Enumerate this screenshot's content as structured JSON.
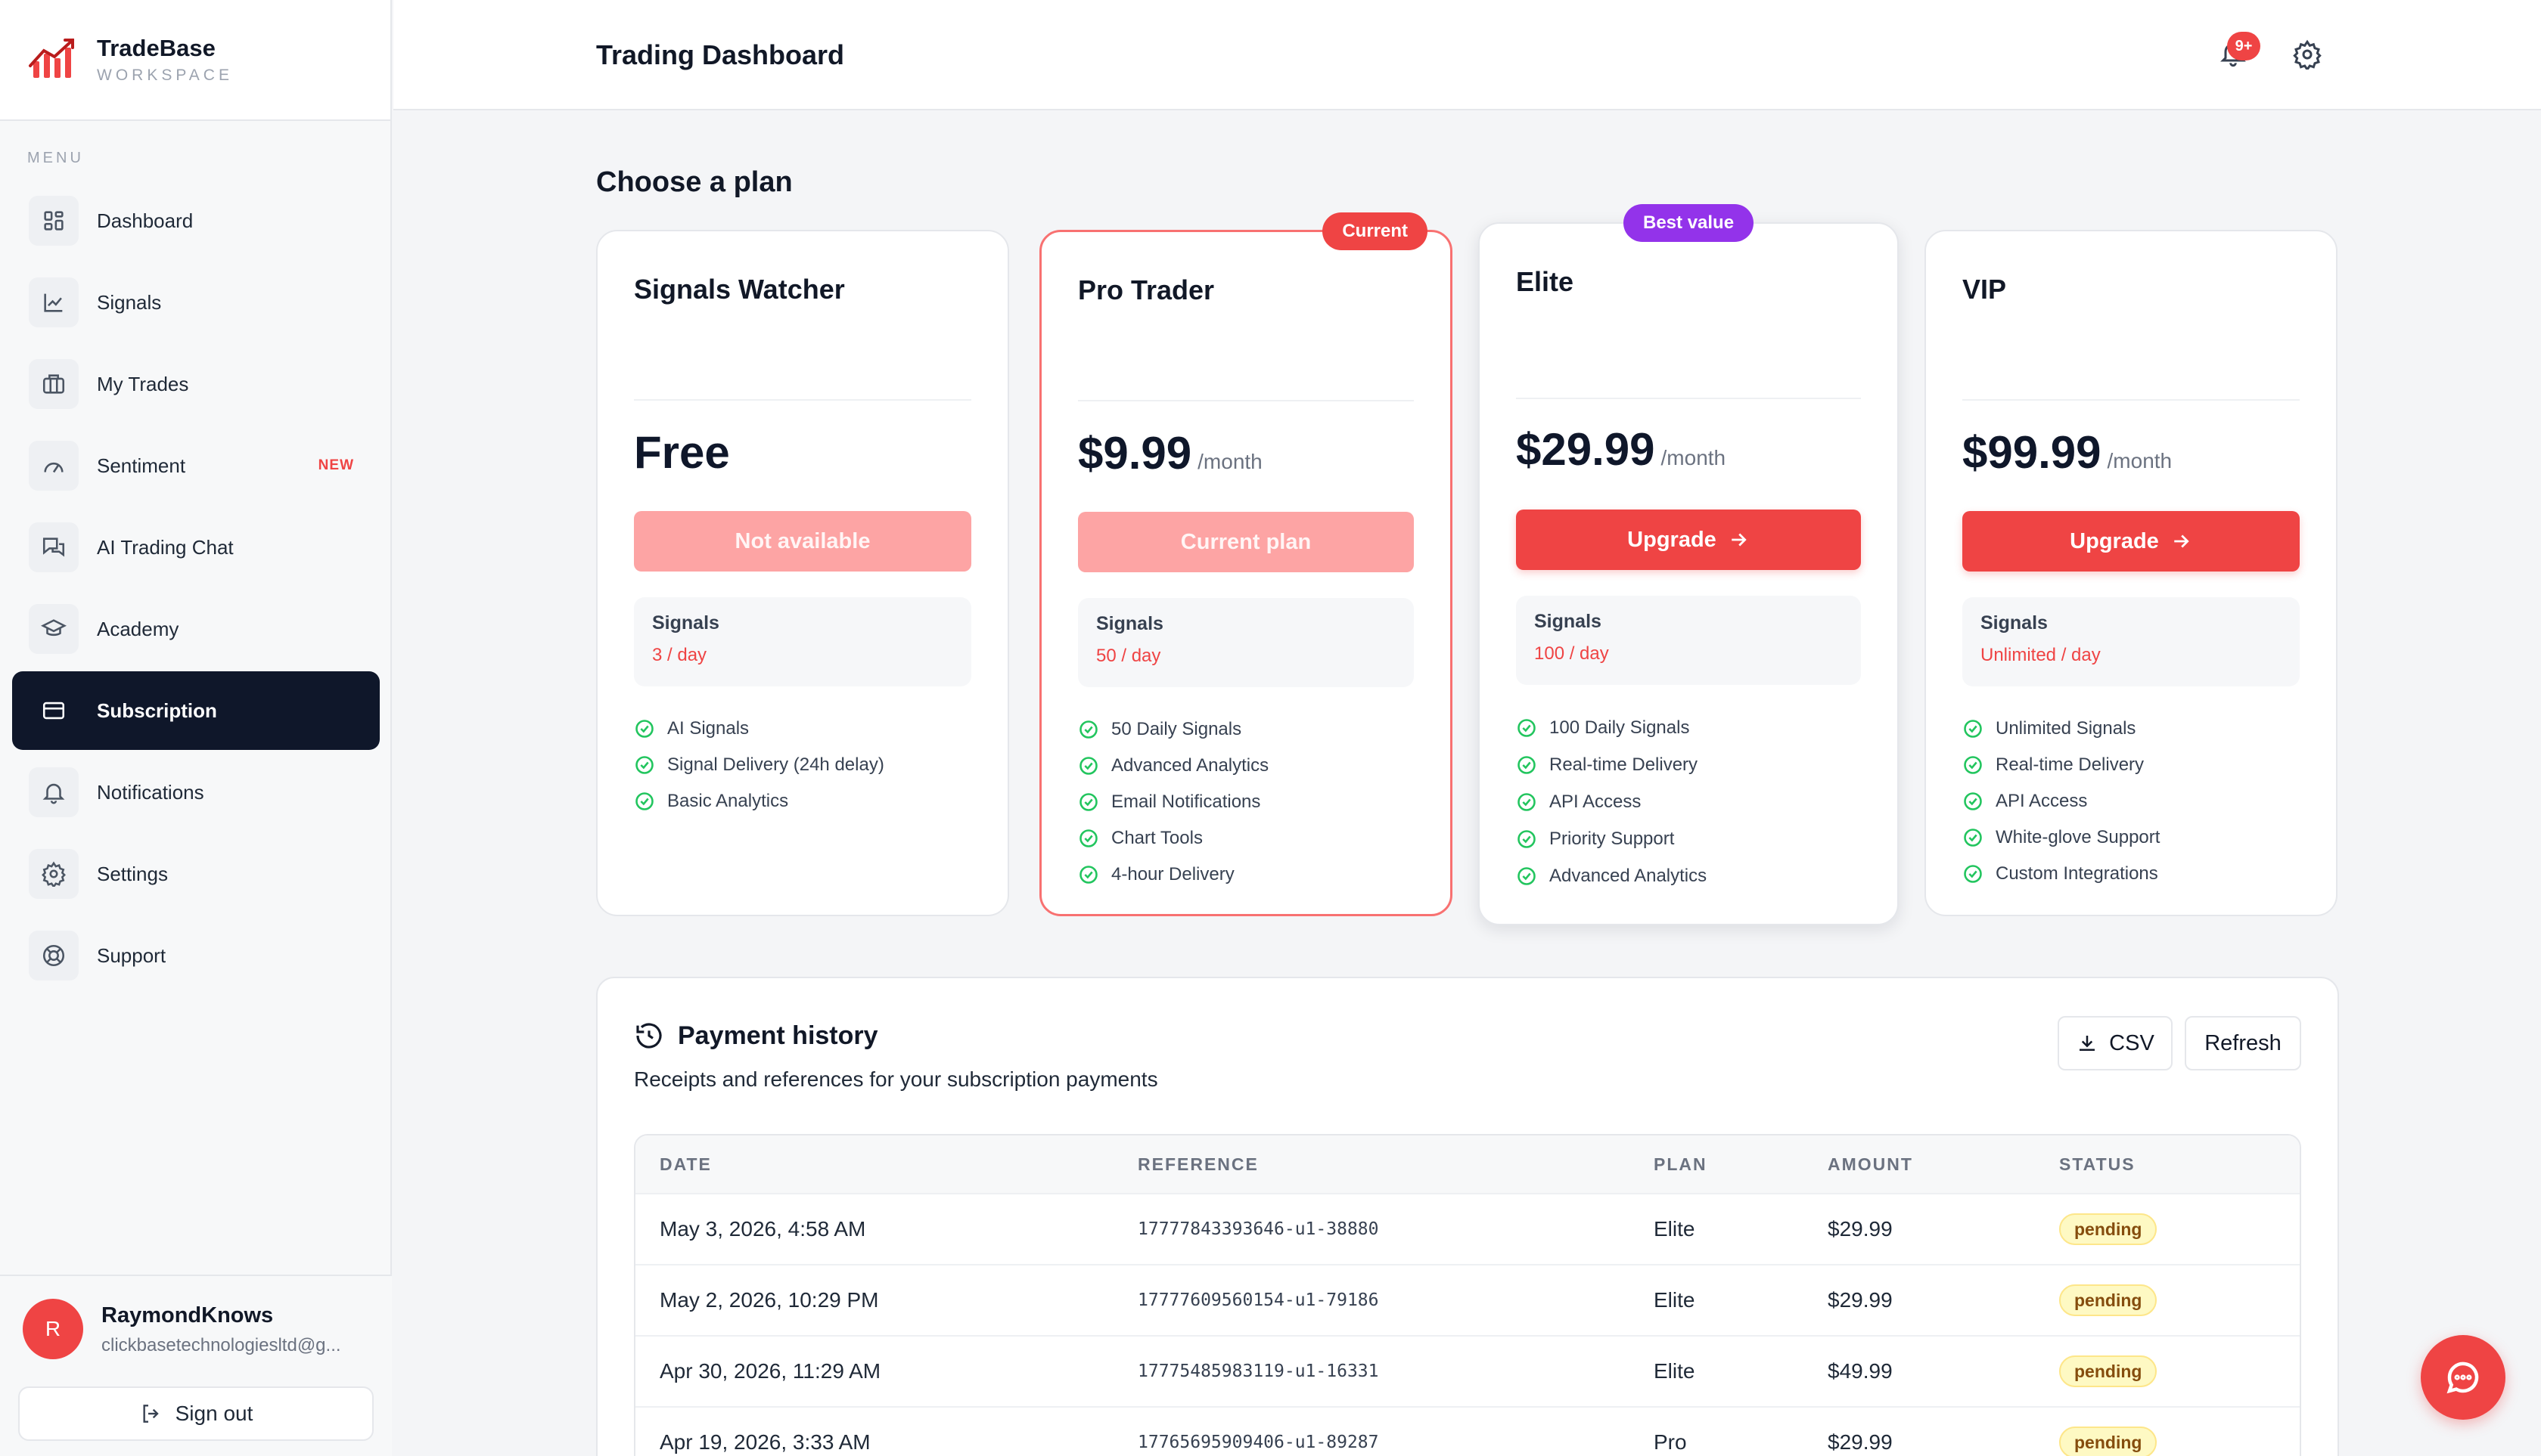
{
  "brand": {
    "name": "TradeBase",
    "sub": "WORKSPACE"
  },
  "sidebar": {
    "menu_label": "MENU",
    "items": [
      {
        "label": "Dashboard",
        "icon": "grid-icon"
      },
      {
        "label": "Signals",
        "icon": "chart-line-icon"
      },
      {
        "label": "My Trades",
        "icon": "briefcase-icon"
      },
      {
        "label": "Sentiment",
        "icon": "gauge-icon",
        "badge": "NEW"
      },
      {
        "label": "AI Trading Chat",
        "icon": "chat-bubbles-icon"
      },
      {
        "label": "Academy",
        "icon": "graduation-cap-icon"
      },
      {
        "label": "Subscription",
        "icon": "credit-card-icon",
        "active": true
      },
      {
        "label": "Notifications",
        "icon": "bell-icon"
      },
      {
        "label": "Settings",
        "icon": "gear-icon"
      },
      {
        "label": "Support",
        "icon": "life-buoy-icon"
      }
    ],
    "user": {
      "initial": "R",
      "name": "RaymondKnows",
      "email": "clickbasetechnologiesltd@g..."
    },
    "sign_out": "Sign out"
  },
  "header": {
    "title": "Trading Dashboard",
    "notification_badge": "9+"
  },
  "plans_section": {
    "title": "Choose a plan"
  },
  "plans": [
    {
      "name": "Signals Watcher",
      "price": "Free",
      "unit": "",
      "button": "Not available",
      "quota_label": "Signals",
      "quota_value": "3 / day",
      "features": [
        "AI Signals",
        "Signal Delivery (24h delay)",
        "Basic Analytics"
      ]
    },
    {
      "name": "Pro Trader",
      "price": "$9.99",
      "unit": "/month",
      "pill": "Current",
      "button": "Current plan",
      "quota_label": "Signals",
      "quota_value": "50 / day",
      "features": [
        "50 Daily Signals",
        "Advanced Analytics",
        "Email Notifications",
        "Chart Tools",
        "4-hour Delivery"
      ]
    },
    {
      "name": "Elite",
      "price": "$29.99",
      "unit": "/month",
      "pill": "Best value",
      "button": "Upgrade",
      "quota_label": "Signals",
      "quota_value": "100 / day",
      "features": [
        "100 Daily Signals",
        "Real-time Delivery",
        "API Access",
        "Priority Support",
        "Advanced Analytics"
      ]
    },
    {
      "name": "VIP",
      "price": "$99.99",
      "unit": "/month",
      "button": "Upgrade",
      "quota_label": "Signals",
      "quota_value": "Unlimited / day",
      "features": [
        "Unlimited Signals",
        "Real-time Delivery",
        "API Access",
        "White-glove Support",
        "Custom Integrations"
      ]
    }
  ],
  "history": {
    "title": "Payment history",
    "subtitle": "Receipts and references for your subscription payments",
    "csv_label": "CSV",
    "refresh_label": "Refresh",
    "columns": [
      "DATE",
      "REFERENCE",
      "PLAN",
      "AMOUNT",
      "STATUS"
    ],
    "rows": [
      {
        "date": "May 3, 2026, 4:58 AM",
        "reference": "17777843393646-u1-38880",
        "plan": "Elite",
        "amount": "$29.99",
        "status": "pending"
      },
      {
        "date": "May 2, 2026, 10:29 PM",
        "reference": "17777609560154-u1-79186",
        "plan": "Elite",
        "amount": "$29.99",
        "status": "pending"
      },
      {
        "date": "Apr 30, 2026, 11:29 AM",
        "reference": "17775485983119-u1-16331",
        "plan": "Elite",
        "amount": "$49.99",
        "status": "pending"
      },
      {
        "date": "Apr 19, 2026, 3:33 AM",
        "reference": "17765695909406-u1-89287",
        "plan": "Pro",
        "amount": "$29.99",
        "status": "pending"
      }
    ]
  },
  "colors": {
    "accent": "#ef4444",
    "sidebar_active": "#0f172a",
    "best_value": "#9333ea",
    "check": "#22c55e"
  }
}
